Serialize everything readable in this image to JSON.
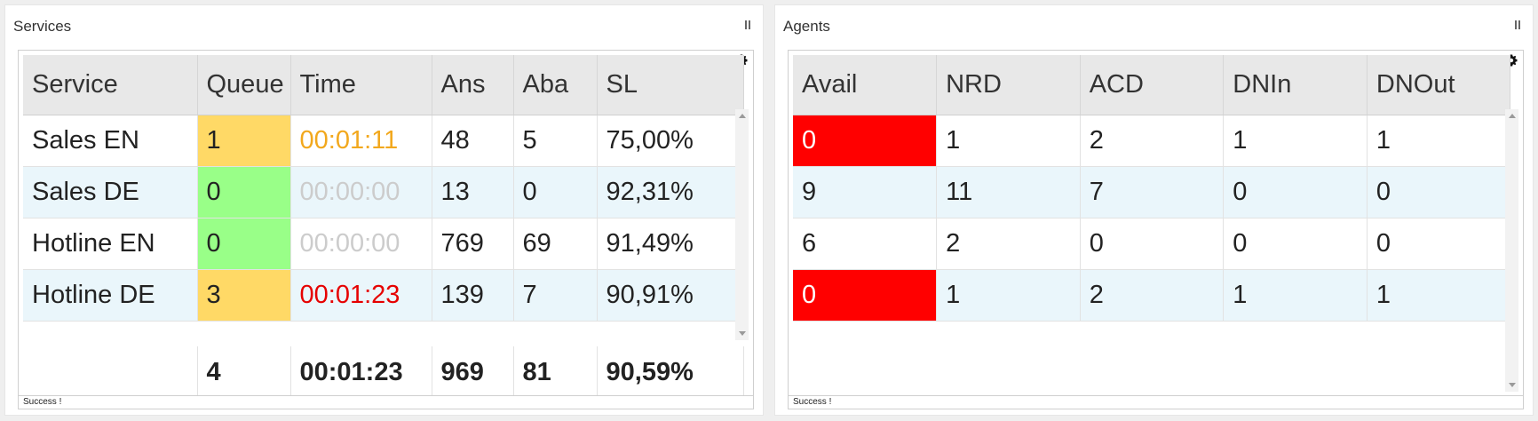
{
  "services": {
    "title": "Services",
    "columns": [
      "Service",
      "Queue",
      "Time",
      "Ans",
      "Aba",
      "SL"
    ],
    "rows": [
      {
        "service": "Sales EN",
        "queue": "1",
        "time": "00:01:11",
        "ans": "48",
        "aba": "5",
        "sl": "75,00%",
        "queue_color": "#ffd966",
        "time_color": "#f2a81d"
      },
      {
        "service": "Sales DE",
        "queue": "0",
        "time": "00:00:00",
        "ans": "13",
        "aba": "0",
        "sl": "92,31%",
        "queue_color": "#99ff88",
        "time_color": "#cccccc"
      },
      {
        "service": "Hotline EN",
        "queue": "0",
        "time": "00:00:00",
        "ans": "769",
        "aba": "69",
        "sl": "91,49%",
        "queue_color": "#99ff88",
        "time_color": "#cccccc"
      },
      {
        "service": "Hotline DE",
        "queue": "3",
        "time": "00:01:23",
        "ans": "139",
        "aba": "7",
        "sl": "90,91%",
        "queue_color": "#ffd966",
        "time_color": "#e60000"
      }
    ],
    "totals": {
      "service": "",
      "queue": "4",
      "time": "00:01:23",
      "ans": "969",
      "aba": "81",
      "sl": "90,59%"
    },
    "status": "Success !",
    "settings_icon": "gear-icon",
    "pause_icon": "pause-icon"
  },
  "agents": {
    "title": "Agents",
    "columns": [
      "Avail",
      "NRD",
      "ACD",
      "DNIn",
      "DNOut"
    ],
    "rows": [
      {
        "avail": "0",
        "nrd": "1",
        "acd": "2",
        "dnin": "1",
        "dnout": "1",
        "avail_color": "#ff0000"
      },
      {
        "avail": "9",
        "nrd": "11",
        "acd": "7",
        "dnin": "0",
        "dnout": "0",
        "avail_color": ""
      },
      {
        "avail": "6",
        "nrd": "2",
        "acd": "0",
        "dnin": "0",
        "dnout": "0",
        "avail_color": ""
      },
      {
        "avail": "0",
        "nrd": "1",
        "acd": "2",
        "dnin": "1",
        "dnout": "1",
        "avail_color": "#ff0000"
      }
    ],
    "status": "Success !",
    "settings_icon": "gear-icon",
    "pause_icon": "pause-icon"
  }
}
